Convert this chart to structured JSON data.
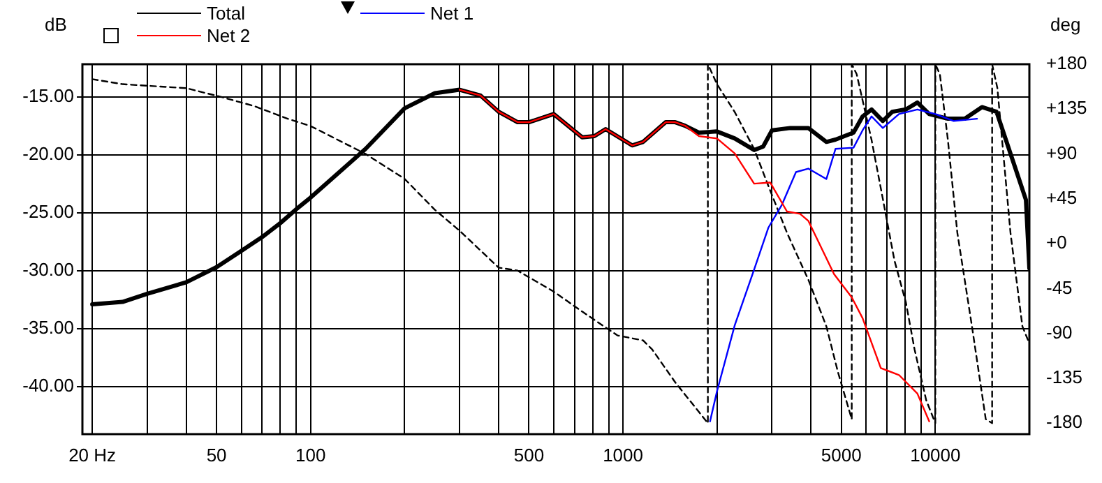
{
  "chart_data": {
    "type": "line",
    "ylabel": "dB",
    "y2label": "deg",
    "log": "x",
    "grid": true,
    "legend": "top left",
    "line_style": "solid",
    "marker": "none",
    "xlim": [
      18.6,
      20000
    ],
    "xticks": [
      {
        "value": 20,
        "label": "20 Hz"
      },
      {
        "value": 30,
        "label": null
      },
      {
        "value": 40,
        "label": null
      },
      50,
      {
        "value": 60,
        "label": null
      },
      {
        "value": 70,
        "label": null
      },
      {
        "value": 80,
        "label": null
      },
      {
        "value": 90,
        "label": null
      },
      100,
      {
        "value": 200,
        "label": null
      },
      {
        "value": 300,
        "label": null
      },
      {
        "value": 400,
        "label": null
      },
      500,
      {
        "value": 600,
        "label": null
      },
      {
        "value": 700,
        "label": null
      },
      {
        "value": 800,
        "label": null
      },
      {
        "value": 900,
        "label": null
      },
      1000,
      {
        "value": 2000,
        "label": null
      },
      {
        "value": 3000,
        "label": null
      },
      {
        "value": 4000,
        "label": null
      },
      5000,
      {
        "value": 6000,
        "label": null
      },
      {
        "value": 7000,
        "label": null
      },
      {
        "value": 8000,
        "label": null
      },
      {
        "value": 9000,
        "label": null
      },
      10000
    ],
    "ylim": [
      -44.1,
      -12.2
    ],
    "yticks": [
      {
        "value": -15,
        "label": "-15.00"
      },
      {
        "value": -20,
        "label": "-20.00"
      },
      {
        "value": -25,
        "label": "-25.00"
      },
      {
        "value": -30,
        "label": "-30.00"
      },
      {
        "value": -35,
        "label": "-35.00"
      },
      {
        "value": -40,
        "label": "-40.00"
      }
    ],
    "y2lim": [
      -191,
      180
    ],
    "y2ticks": [
      {
        "value": 180,
        "label": "+180"
      },
      {
        "value": 135,
        "label": "+135"
      },
      {
        "value": 90,
        "label": "+90"
      },
      {
        "value": 45,
        "label": "+45"
      },
      {
        "value": 0,
        "label": "+0"
      },
      -45,
      -90,
      -135,
      -180
    ],
    "series": [
      {
        "name": "Total",
        "color": "#000000",
        "x": [
          20,
          25,
          30,
          40,
          50,
          60,
          70,
          80,
          90,
          100,
          150,
          200,
          250,
          300,
          350,
          400,
          460,
          500,
          600,
          740,
          810,
          880,
          1070,
          1160,
          1370,
          1470,
          1580,
          1750,
          2000,
          2280,
          2630,
          2810,
          3000,
          3430,
          3920,
          4480,
          4790,
          5470,
          5850,
          6250,
          6790,
          7280,
          8050,
          8760,
          9560,
          10970,
          12430,
          14100,
          15700,
          17800,
          19500,
          20000
        ],
        "values": [
          -32.9,
          -32.7,
          -32.0,
          -31.0,
          -29.7,
          -28.3,
          -27.1,
          -25.9,
          -24.7,
          -23.7,
          -19.5,
          -16.0,
          -14.7,
          -14.4,
          -14.9,
          -16.3,
          -17.2,
          -17.2,
          -16.5,
          -18.5,
          -18.4,
          -17.8,
          -19.2,
          -18.9,
          -17.2,
          -17.2,
          -17.5,
          -18.1,
          -18.0,
          -18.6,
          -19.6,
          -19.3,
          -17.9,
          -17.7,
          -17.7,
          -18.9,
          -18.7,
          -18.1,
          -16.7,
          -16.1,
          -17.1,
          -16.3,
          -16.1,
          -15.5,
          -16.5,
          -16.9,
          -16.9,
          -15.9,
          -16.3,
          -20.7,
          -23.9,
          -29.8
        ]
      },
      {
        "name": "Net 2",
        "color": "#ff0000",
        "x": [
          300,
          350,
          400,
          460,
          500,
          600,
          740,
          810,
          880,
          1070,
          1160,
          1370,
          1470,
          1580,
          1750,
          2000,
          2280,
          2630,
          2960,
          3350,
          3690,
          3920,
          4740,
          5400,
          5850,
          6690,
          7650,
          8760,
          9560
        ],
        "values": [
          -14.4,
          -14.9,
          -16.3,
          -17.2,
          -17.2,
          -16.5,
          -18.5,
          -18.4,
          -17.8,
          -19.2,
          -18.9,
          -17.2,
          -17.2,
          -17.5,
          -18.4,
          -18.6,
          -19.9,
          -22.5,
          -22.4,
          -24.9,
          -25.1,
          -25.7,
          -30.3,
          -32.3,
          -34.1,
          -38.4,
          -39.0,
          -40.6,
          -43.0
        ]
      },
      {
        "name": "Net 1",
        "color": "#0000ff",
        "x": [
          1900,
          2000,
          2280,
          2630,
          2920,
          3230,
          3580,
          3920,
          4480,
          4790,
          5470,
          5850,
          6250,
          6790,
          7650,
          8760,
          10000,
          11450,
          13600
        ],
        "values": [
          -43.0,
          -40.4,
          -34.7,
          -29.9,
          -26.3,
          -24.3,
          -21.5,
          -21.2,
          -22.1,
          -19.5,
          -19.4,
          -17.9,
          -16.7,
          -17.7,
          -16.5,
          -16.1,
          -16.5,
          -17.1,
          -16.9
        ]
      },
      {
        "color": "#000000",
        "axis": "y2",
        "line_style": "dashed",
        "x": [
          20,
          25,
          40,
          52,
          66,
          85,
          100,
          150,
          200,
          250,
          300,
          400,
          460,
          600,
          740,
          960,
          1160,
          1240,
          1470,
          1870,
          1870,
          2000,
          2280,
          2630,
          2920,
          3350,
          3920,
          4480,
          4880,
          5400,
          5400,
          5600,
          6250,
          6800,
          7400,
          8050,
          8580,
          9350,
          10000,
          10000,
          10340,
          10970,
          11760,
          13100,
          14500,
          15200,
          15200,
          15800,
          17400,
          19000,
          20000
        ],
        "values": [
          165,
          160,
          156,
          147,
          138,
          125,
          118,
          90,
          65,
          34,
          13,
          -24,
          -27,
          -48,
          -68,
          -92,
          -97,
          -106,
          -139,
          -180,
          180,
          160,
          132,
          95,
          58,
          11,
          -36,
          -83,
          -129,
          -176,
          180,
          170,
          104,
          44,
          -17,
          -59,
          -106,
          -157,
          -180,
          180,
          170,
          104,
          11,
          -83,
          -176,
          -180,
          180,
          156,
          11,
          -83,
          -100
        ]
      }
    ]
  }
}
